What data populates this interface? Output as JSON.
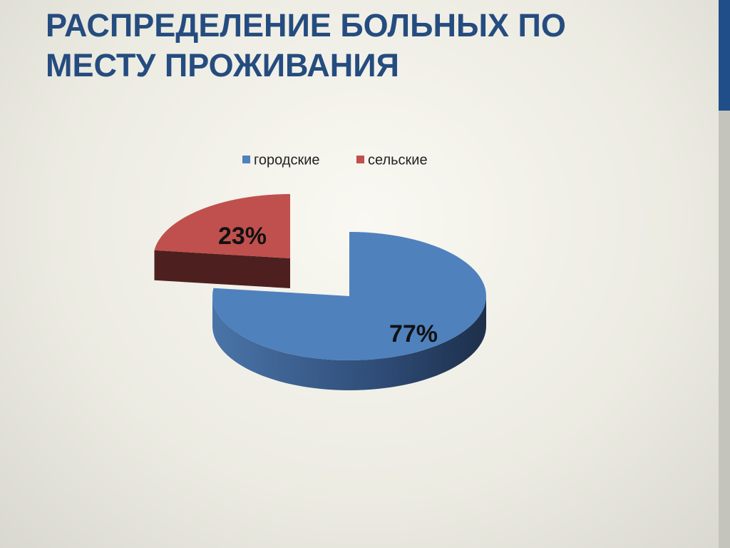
{
  "chart_data": {
    "type": "pie",
    "title": "РАСПРЕДЕЛЕНИЕ БОЛЬНЫХ ПО МЕСТУ ПРОЖИВАНИЯ",
    "categories": [
      "городские",
      "сельские"
    ],
    "values": [
      77,
      23
    ],
    "value_labels": [
      "77%",
      "23%"
    ],
    "colors": [
      "#4f81bd",
      "#c0504d"
    ],
    "legend": "top"
  }
}
